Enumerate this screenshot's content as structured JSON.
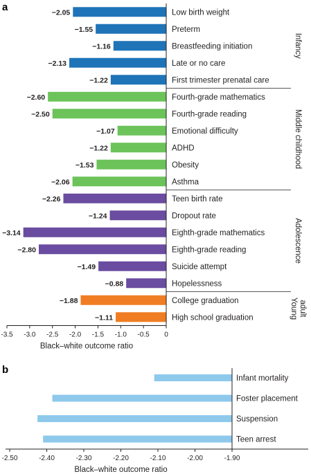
{
  "chart_data": [
    {
      "type": "bar",
      "panel": "a",
      "orientation": "horizontal",
      "xlabel": "Black–white outcome ratio",
      "ylabel": "",
      "xlim": [
        -3.5,
        0
      ],
      "xticks": [
        "-3.5",
        "-3.0",
        "-2.5",
        "-2.0",
        "-1.5",
        "-1.0",
        "-0.5",
        "0"
      ],
      "grid": false,
      "legend": "none",
      "groups": [
        {
          "name": "Infancy",
          "color": "#1f74b8",
          "categories": [
            "Low birth weight",
            "Preterm",
            "Breastfeeding initiation",
            "Late or no care",
            "First trimester prenatal care"
          ],
          "values": [
            -2.05,
            -1.55,
            -1.16,
            -2.13,
            -1.22
          ],
          "value_labels": [
            "−2.05",
            "−1.55",
            "−1.16",
            "−2.13",
            "−1.22"
          ]
        },
        {
          "name": "Middle childhood",
          "color": "#6cc35a",
          "categories": [
            "Fourth-grade mathematics",
            "Fourth-grade reading",
            "Emotional difficulty",
            "ADHD",
            "Obesity",
            "Asthma"
          ],
          "values": [
            -2.6,
            -2.5,
            -1.07,
            -1.22,
            -1.53,
            -2.06
          ],
          "value_labels": [
            "−2.60",
            "−2.50",
            "−1.07",
            "−1.22",
            "−1.53",
            "−2.06"
          ]
        },
        {
          "name": "Adolescence",
          "color": "#6a4ca0",
          "categories": [
            "Teen birth rate",
            "Dropout rate",
            "Eighth-grade mathematics",
            "Eighth-grade reading",
            "Suicide attempt",
            "Hopelessness"
          ],
          "values": [
            -2.26,
            -1.24,
            -3.14,
            -2.8,
            -1.49,
            -0.88
          ],
          "value_labels": [
            "−2.26",
            "−1.24",
            "−3.14",
            "−2.80",
            "−1.49",
            "−0.88"
          ]
        },
        {
          "name": "Young adult",
          "name_lines": [
            "Young",
            "adult"
          ],
          "color": "#f07d23",
          "categories": [
            "College graduation",
            "High school graduation"
          ],
          "values": [
            -1.88,
            -1.11
          ],
          "value_labels": [
            "−1.88",
            "−1.11"
          ]
        }
      ]
    },
    {
      "type": "bar",
      "panel": "b",
      "orientation": "horizontal",
      "xlabel": "Black–white outcome ratio",
      "ylabel": "",
      "xlim": [
        -2.5,
        -1.9
      ],
      "xticks": [
        "-2.50",
        "-2.40",
        "-2.30",
        "-2.20",
        "-2.10",
        "-2.00",
        "-1.90"
      ],
      "grid": false,
      "legend": "none",
      "color": "#8ec9ec",
      "categories": [
        "Infant mortality",
        "Foster placement",
        "Suspension",
        "Teen arrest"
      ],
      "values": [
        -2.11,
        -2.385,
        -2.425,
        -2.41
      ]
    }
  ]
}
